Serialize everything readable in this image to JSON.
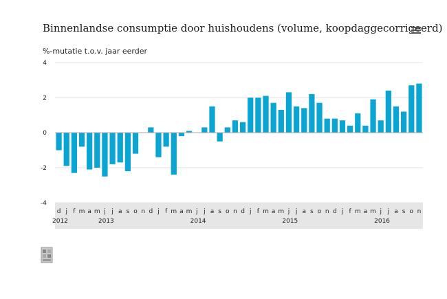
{
  "header": {
    "title": "Binnenlandse consumptie door huishoudens (volume, koopdaggecorrigeerd)",
    "y_unit_label": "%-mutatie t.o.v. jaar eerder"
  },
  "menu_icon": "hamburger-menu-icon",
  "logo_icon": "cbs-logo-icon",
  "colors": {
    "bar": "#0aa5d2",
    "axis_band": "#e6e6e6",
    "grid": "#e0e0e0",
    "zero_line": "#aaaaaa"
  },
  "chart_data": {
    "type": "bar",
    "title": "Binnenlandse consumptie door huishoudens (volume, koopdaggecorrigeerd)",
    "ylabel": "%-mutatie t.o.v. jaar eerder",
    "ylim": [
      -4,
      4
    ],
    "yticks": [
      4,
      2,
      0,
      -2,
      -4
    ],
    "grid": true,
    "legend": "none",
    "categories": [
      "d",
      "j",
      "f",
      "m",
      "a",
      "m",
      "j",
      "j",
      "a",
      "s",
      "o",
      "n",
      "d",
      "j",
      "f",
      "m",
      "a",
      "m",
      "j",
      "j",
      "a",
      "s",
      "o",
      "n",
      "d",
      "j",
      "f",
      "m",
      "a",
      "m",
      "j",
      "j",
      "a",
      "s",
      "o",
      "n",
      "d",
      "j",
      "f",
      "m",
      "a",
      "m",
      "j",
      "j",
      "a",
      "s",
      "o",
      "n"
    ],
    "year_labels": [
      {
        "label": "2012",
        "index": 0
      },
      {
        "label": "2013",
        "index": 6
      },
      {
        "label": "2014",
        "index": 18
      },
      {
        "label": "2015",
        "index": 30
      },
      {
        "label": "2016",
        "index": 42
      }
    ],
    "values": [
      -1.0,
      -1.9,
      -2.3,
      -0.8,
      -2.1,
      -2.0,
      -2.5,
      -1.8,
      -1.7,
      -2.2,
      -1.2,
      0.0,
      0.3,
      -1.4,
      -0.8,
      -2.4,
      -0.2,
      0.1,
      0.0,
      0.3,
      1.5,
      -0.5,
      0.3,
      0.7,
      0.6,
      2.0,
      2.0,
      2.1,
      1.7,
      1.3,
      2.3,
      1.5,
      1.4,
      2.2,
      1.7,
      0.8,
      0.8,
      0.7,
      0.4,
      1.1,
      0.4,
      1.9,
      0.7,
      2.4,
      1.5,
      1.2,
      2.7,
      2.8
    ]
  }
}
